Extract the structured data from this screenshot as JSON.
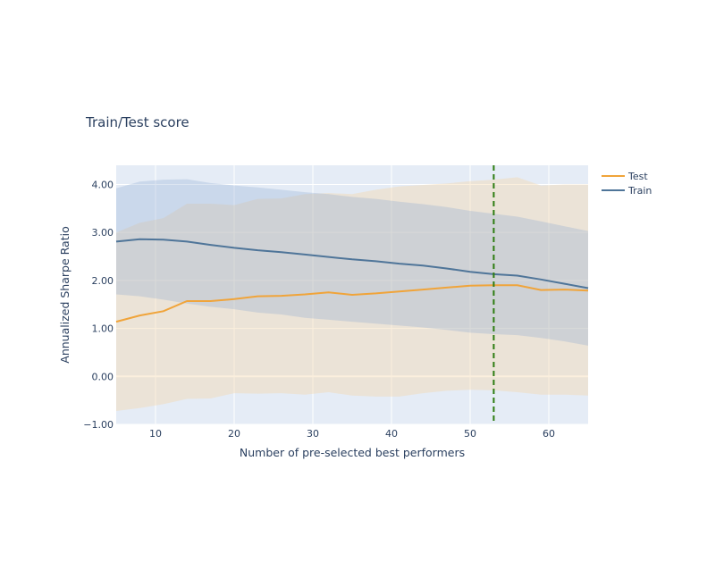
{
  "chart_data": {
    "type": "line",
    "title": "Train/Test score",
    "xlabel": "Number of pre-selected best performers",
    "ylabel": "Annualized Sharpe Ratio",
    "xlim": [
      5,
      65
    ],
    "ylim": [
      -1.0,
      4.4
    ],
    "xticks": [
      10,
      20,
      30,
      40,
      50,
      60
    ],
    "yticks": [
      -1.0,
      0.0,
      1.0,
      2.0,
      3.0,
      4.0
    ],
    "ytick_labels": [
      "−1.00",
      "0.00",
      "1.00",
      "2.00",
      "3.00",
      "4.00"
    ],
    "grid": true,
    "legend_position": "top-right",
    "vline": {
      "x": 53,
      "color": "#2e7d12",
      "style": "dashed"
    },
    "x": [
      5,
      8,
      11,
      14,
      17,
      20,
      23,
      26,
      29,
      32,
      35,
      38,
      41,
      44,
      47,
      50,
      53,
      56,
      59,
      62,
      65
    ],
    "series": [
      {
        "name": "Test",
        "color": "#f0a43a",
        "values": [
          1.14,
          1.27,
          1.36,
          1.57,
          1.57,
          1.61,
          1.67,
          1.68,
          1.71,
          1.75,
          1.7,
          1.73,
          1.77,
          1.81,
          1.85,
          1.89,
          1.9,
          1.9,
          1.8,
          1.81,
          1.79
        ],
        "upper": [
          3.0,
          3.2,
          3.3,
          3.6,
          3.6,
          3.57,
          3.7,
          3.71,
          3.8,
          3.82,
          3.8,
          3.89,
          3.96,
          3.99,
          4.02,
          4.07,
          4.1,
          4.15,
          3.98,
          4.0,
          4.0
        ],
        "lower": [
          -0.72,
          -0.66,
          -0.58,
          -0.47,
          -0.46,
          -0.35,
          -0.36,
          -0.35,
          -0.38,
          -0.33,
          -0.4,
          -0.42,
          -0.42,
          -0.35,
          -0.3,
          -0.28,
          -0.29,
          -0.33,
          -0.38,
          -0.38,
          -0.4
        ]
      },
      {
        "name": "Train",
        "color": "#4f7599",
        "values": [
          2.81,
          2.86,
          2.85,
          2.81,
          2.74,
          2.68,
          2.63,
          2.59,
          2.54,
          2.49,
          2.44,
          2.4,
          2.35,
          2.31,
          2.25,
          2.18,
          2.13,
          2.1,
          2.02,
          1.93,
          1.84
        ],
        "upper": [
          3.92,
          4.06,
          4.1,
          4.11,
          4.03,
          3.98,
          3.94,
          3.89,
          3.84,
          3.8,
          3.74,
          3.7,
          3.64,
          3.59,
          3.53,
          3.45,
          3.39,
          3.33,
          3.23,
          3.13,
          3.03
        ],
        "lower": [
          1.71,
          1.67,
          1.6,
          1.52,
          1.45,
          1.4,
          1.33,
          1.29,
          1.22,
          1.18,
          1.14,
          1.1,
          1.06,
          1.02,
          0.97,
          0.91,
          0.88,
          0.86,
          0.8,
          0.73,
          0.64
        ]
      }
    ]
  }
}
